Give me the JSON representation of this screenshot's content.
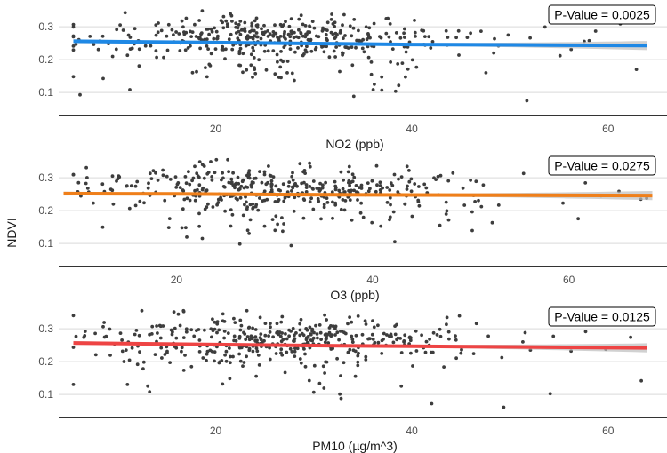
{
  "shared_ylabel": "NDVI",
  "chart_data": [
    {
      "type": "scatter",
      "title": "",
      "xlabel": "NO2 (ppb)",
      "ylabel": "NDVI",
      "xlim": [
        4,
        66
      ],
      "ylim": [
        0.03,
        0.36
      ],
      "xticks": [
        20,
        40,
        60
      ],
      "yticks": [
        0.1,
        0.2,
        0.3
      ],
      "grid": "horizontal",
      "annotation": "P-Value = 0.0025",
      "trend_color": "#1e88e5",
      "fit": [
        [
          5.5,
          0.256
        ],
        [
          20,
          0.252
        ],
        [
          30,
          0.249
        ],
        [
          40,
          0.246
        ],
        [
          50,
          0.245
        ],
        [
          64,
          0.243
        ]
      ],
      "point_seed": 11
    },
    {
      "type": "scatter",
      "title": "",
      "xlabel": "O3 (ppb)",
      "ylabel": "NDVI",
      "xlim": [
        8,
        70
      ],
      "ylim": [
        0.03,
        0.36
      ],
      "xticks": [
        20,
        40,
        60
      ],
      "yticks": [
        0.1,
        0.2,
        0.3
      ],
      "grid": "horizontal",
      "annotation": "P-Value = 0.0275",
      "trend_color": "#ef7f1a",
      "fit": [
        [
          8.5,
          0.252
        ],
        [
          20,
          0.251
        ],
        [
          30,
          0.249
        ],
        [
          40,
          0.248
        ],
        [
          55,
          0.247
        ],
        [
          68.5,
          0.246
        ]
      ],
      "point_seed": 23
    },
    {
      "type": "scatter",
      "title": "",
      "xlabel": "PM10 (µg/m^3)",
      "ylabel": "NDVI",
      "xlim": [
        4,
        66
      ],
      "ylim": [
        0.03,
        0.36
      ],
      "xticks": [
        20,
        40,
        60
      ],
      "yticks": [
        0.1,
        0.2,
        0.3
      ],
      "grid": "horizontal",
      "annotation": "P-Value = 0.0125",
      "trend_color": "#ee4444",
      "fit": [
        [
          5.5,
          0.257
        ],
        [
          20,
          0.252
        ],
        [
          30,
          0.249
        ],
        [
          40,
          0.247
        ],
        [
          50,
          0.245
        ],
        [
          64,
          0.242
        ]
      ],
      "point_seed": 37
    }
  ]
}
